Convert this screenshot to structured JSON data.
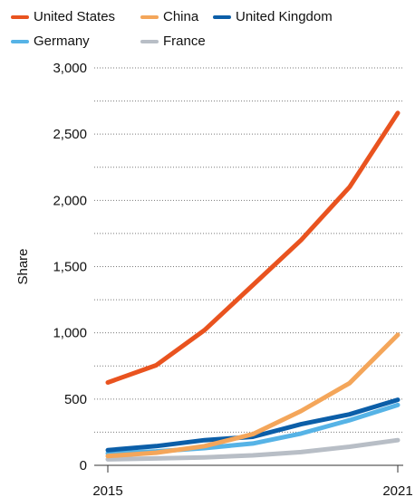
{
  "chart_data": {
    "type": "line",
    "title": "",
    "xlabel": "",
    "ylabel": "Share",
    "x": [
      2015,
      2016,
      2017,
      2018,
      2019,
      2020,
      2021
    ],
    "x_tick_labels": [
      "2015",
      "2021"
    ],
    "ylim": [
      0,
      3000
    ],
    "y_ticks": [
      0,
      500,
      1000,
      1500,
      2000,
      2500,
      3000
    ],
    "y_tick_labels": [
      "0",
      "500",
      "1,000",
      "1,500",
      "2,000",
      "2,500",
      "3,000"
    ],
    "grid": "dotted horizontal",
    "legend_position": "top",
    "series": [
      {
        "name": "United States",
        "color": "#e9531f",
        "values": [
          625,
          755,
          1020,
          1360,
          1700,
          2100,
          2660
        ]
      },
      {
        "name": "China",
        "color": "#f4a65a",
        "values": [
          70,
          95,
          145,
          235,
          410,
          620,
          985
        ]
      },
      {
        "name": "United Kingdom",
        "color": "#0b5ea8",
        "values": [
          115,
          145,
          190,
          215,
          310,
          385,
          495
        ]
      },
      {
        "name": "Germany",
        "color": "#56b3e6",
        "values": [
          90,
          105,
          130,
          165,
          240,
          340,
          455
        ]
      },
      {
        "name": "France",
        "color": "#b8bec6",
        "values": [
          45,
          52,
          60,
          75,
          100,
          140,
          190
        ]
      }
    ]
  }
}
